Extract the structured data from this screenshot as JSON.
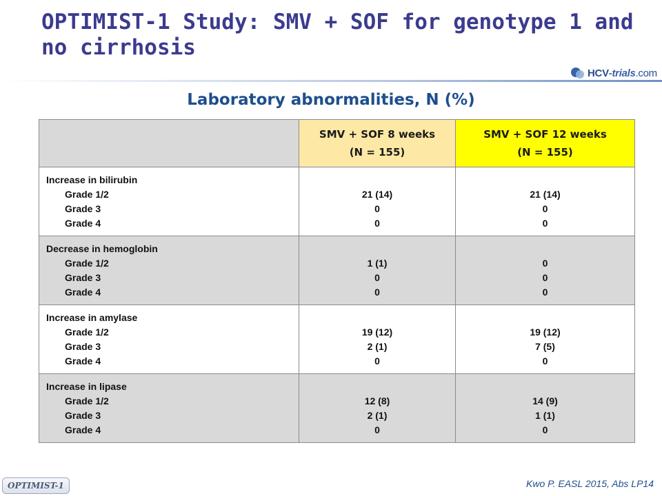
{
  "slide": {
    "title": "OPTIMIST-1 Study: SMV + SOF for genotype 1 and no cirrhosis",
    "subtitle": "Laboratory abnormalities, N (%)",
    "logo": {
      "part1": "HCV",
      "part2": "-trials",
      "part3": ".com",
      "icon": "hcv-trials-logo-icon"
    },
    "tag": "OPTIMIST-1",
    "citation": "Kwo P. EASL 2015, Abs LP14"
  },
  "table": {
    "header": {
      "col2_line1": "SMV + SOF 8 weeks",
      "col2_line2": "(N = 155)",
      "col3_line1": "SMV + SOF 12 weeks",
      "col3_line2": "(N = 155)"
    },
    "groups": [
      {
        "name": "Increase in bilirubin",
        "grades": [
          "Grade 1/2",
          "Grade 3",
          "Grade 4"
        ],
        "w8": [
          "21 (14)",
          "0",
          "0"
        ],
        "w12": [
          "21 (14)",
          "0",
          "0"
        ]
      },
      {
        "name": "Decrease in hemoglobin",
        "grades": [
          "Grade 1/2",
          "Grade 3",
          "Grade 4"
        ],
        "w8": [
          "1 (1)",
          "0",
          "0"
        ],
        "w12": [
          "0",
          "0",
          "0"
        ]
      },
      {
        "name": "Increase in amylase",
        "grades": [
          "Grade 1/2",
          "Grade 3",
          "Grade 4"
        ],
        "w8": [
          "19 (12)",
          "2 (1)",
          "0"
        ],
        "w12": [
          "19 (12)",
          "7 (5)",
          "0"
        ]
      },
      {
        "name": "Increase in lipase",
        "grades": [
          "Grade 1/2",
          "Grade 3",
          "Grade 4"
        ],
        "w8": [
          "12 (8)",
          "2 (1)",
          "0"
        ],
        "w12": [
          "14 (9)",
          "1 (1)",
          "0"
        ]
      }
    ]
  },
  "colors": {
    "title": "#3b3b8f",
    "subtitle": "#1f4e8c",
    "header_8wk": "#fde9a5",
    "header_12wk": "#ffff00",
    "row_grey": "#d9d9d9"
  }
}
